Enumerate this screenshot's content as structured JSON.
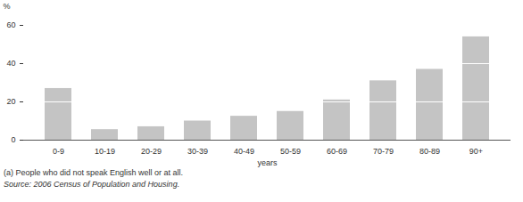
{
  "chart_data": {
    "type": "bar",
    "categories": [
      "0-9",
      "10-19",
      "20-29",
      "30-39",
      "40-49",
      "50-59",
      "60-69",
      "70-79",
      "80-89",
      "90+"
    ],
    "values": [
      27,
      5.5,
      7,
      10,
      12.5,
      15,
      21,
      31,
      37,
      54
    ],
    "color": "#c4c4c4",
    "x_label": "years",
    "y_label": "%",
    "ylim": [
      0,
      60
    ],
    "yticks": [
      0,
      20,
      40,
      60
    ],
    "grid": true,
    "annotations": [
      "(a) People who did not speak English well or at all.",
      "Source: 2006 Census of Population and Housing."
    ]
  }
}
